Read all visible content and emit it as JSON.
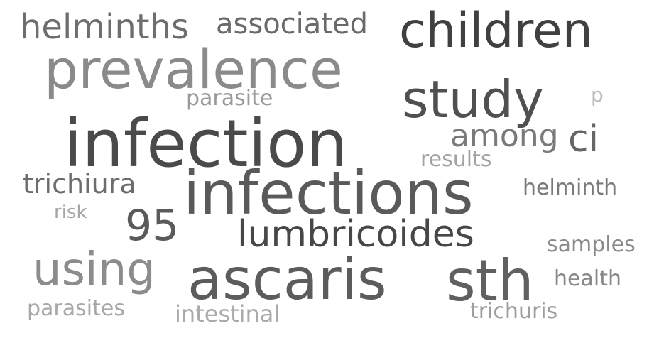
{
  "word_cloud": {
    "words": [
      {
        "text": "infection",
        "color": "#4a4a4a"
      },
      {
        "text": "infections",
        "color": "#5a5a5a"
      },
      {
        "text": "prevalence",
        "color": "#8a8a8a"
      },
      {
        "text": "children",
        "color": "#404040"
      },
      {
        "text": "study",
        "color": "#505050"
      },
      {
        "text": "ascaris",
        "color": "#5c5c5c"
      },
      {
        "text": "sth",
        "color": "#606060"
      },
      {
        "text": "using",
        "color": "#8c8c8c"
      },
      {
        "text": "lumbricoides",
        "color": "#474747"
      },
      {
        "text": "95",
        "color": "#5a5a5a"
      },
      {
        "text": "helminths",
        "color": "#6e6e6e"
      },
      {
        "text": "associated",
        "color": "#6a6a6a"
      },
      {
        "text": "among",
        "color": "#7a7a7a"
      },
      {
        "text": "ci",
        "color": "#666666"
      },
      {
        "text": "trichiura",
        "color": "#6c6c6c"
      },
      {
        "text": "helminth",
        "color": "#7a7a7a"
      },
      {
        "text": "parasite",
        "color": "#9a9a9a"
      },
      {
        "text": "results",
        "color": "#a2a2a2"
      },
      {
        "text": "risk",
        "color": "#a6a6a6"
      },
      {
        "text": "samples",
        "color": "#8a8a8a"
      },
      {
        "text": "health",
        "color": "#888888"
      },
      {
        "text": "parasites",
        "color": "#a8a8a8"
      },
      {
        "text": "intestinal",
        "color": "#aaaaaa"
      },
      {
        "text": "trichuris",
        "color": "#9e9e9e"
      },
      {
        "text": "p",
        "color": "#bbbbbb"
      }
    ]
  }
}
